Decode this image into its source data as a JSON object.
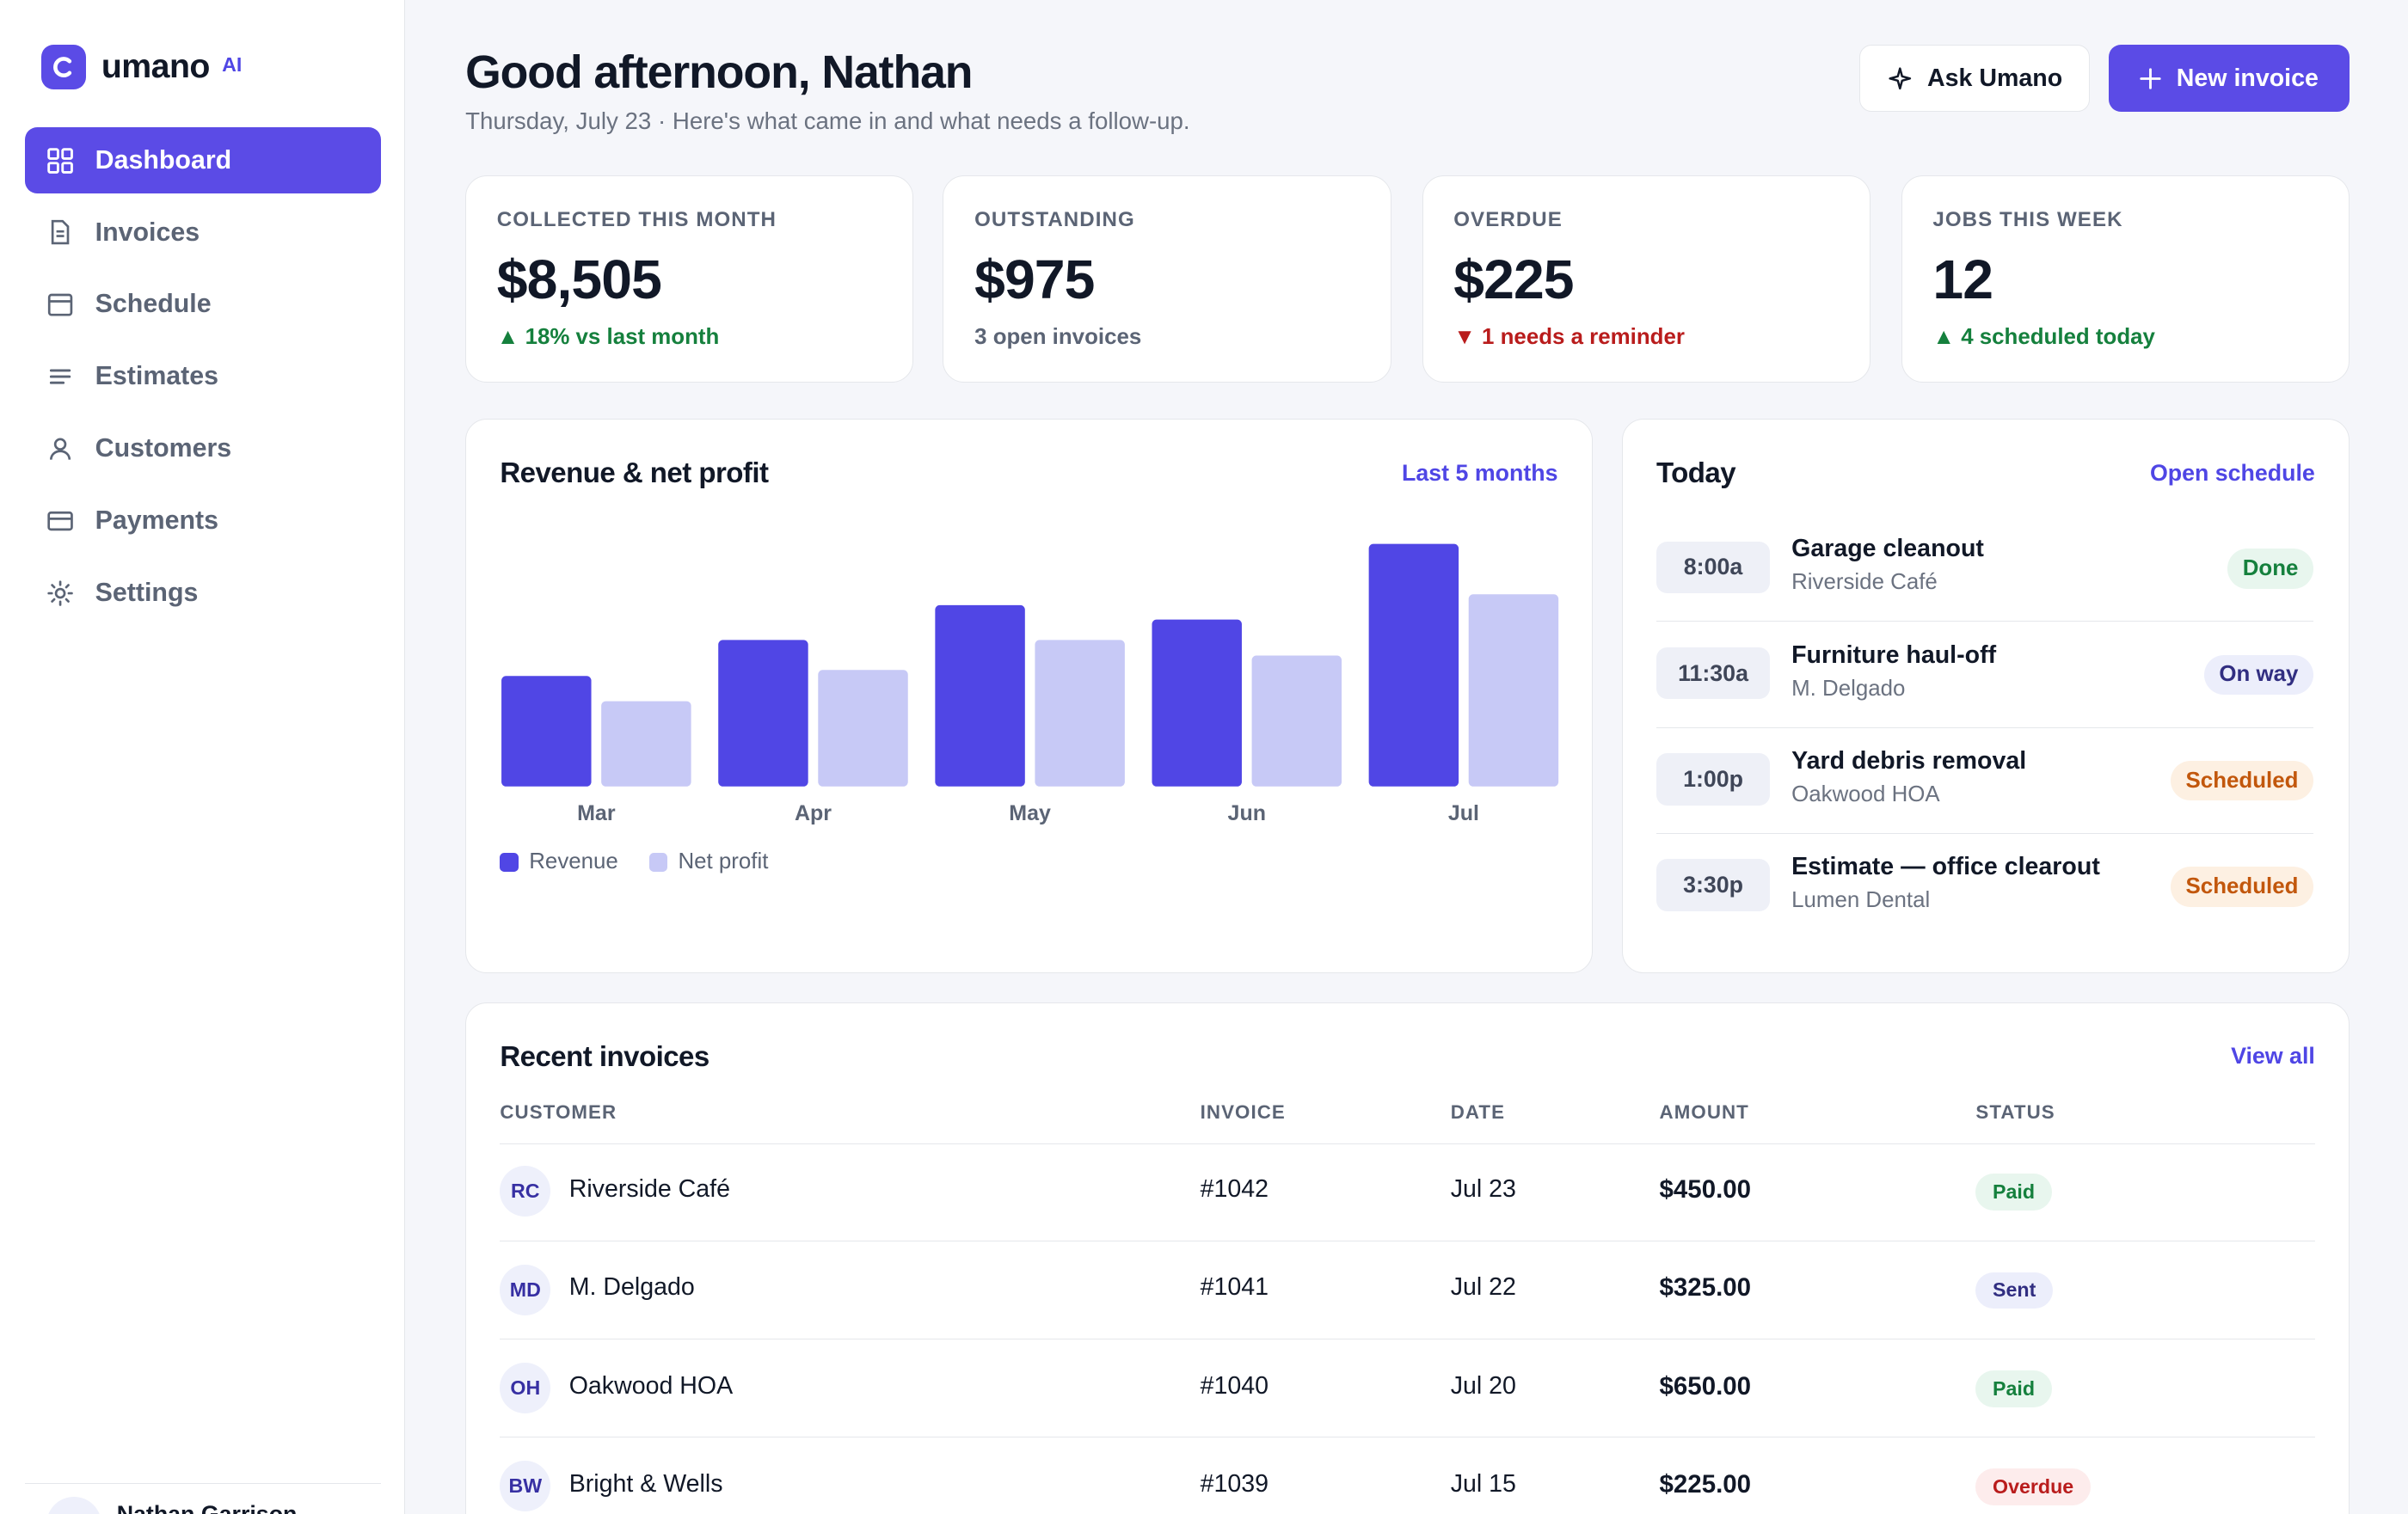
{
  "brand": {
    "name": "umano",
    "tag": "AI"
  },
  "sidebar": {
    "items": [
      {
        "label": "Dashboard",
        "icon": "grid-icon",
        "active": true
      },
      {
        "label": "Invoices",
        "icon": "document-icon",
        "active": false
      },
      {
        "label": "Schedule",
        "icon": "calendar-icon",
        "active": false
      },
      {
        "label": "Estimates",
        "icon": "list-icon",
        "active": false
      },
      {
        "label": "Customers",
        "icon": "user-icon",
        "active": false
      },
      {
        "label": "Payments",
        "icon": "card-icon",
        "active": false
      },
      {
        "label": "Settings",
        "icon": "gear-icon",
        "active": false
      }
    ],
    "user_name": "Nathan Garrison"
  },
  "header": {
    "greeting": "Good afternoon, Nathan",
    "subtitle": "Thursday, July 23 · Here's what came in and what needs a follow-up.",
    "ask_label": "Ask Umano",
    "new_label": "New invoice"
  },
  "stats": [
    {
      "label": "COLLECTED THIS MONTH",
      "value": "$8,505",
      "sub": "▲ 18% vs last month",
      "tone": "green"
    },
    {
      "label": "OUTSTANDING",
      "value": "$975",
      "sub": "3 open invoices",
      "tone": "muted"
    },
    {
      "label": "OVERDUE",
      "value": "$225",
      "sub": "▼ 1 needs a reminder",
      "tone": "red"
    },
    {
      "label": "JOBS THIS WEEK",
      "value": "12",
      "sub": "▲ 4 scheduled today",
      "tone": "green"
    }
  ],
  "revenue_card": {
    "title": "Revenue & net profit",
    "link": "Last 5 months"
  },
  "chart_data": {
    "type": "bar",
    "title": "Revenue & net profit",
    "categories": [
      "Mar",
      "Apr",
      "May",
      "Jun",
      "Jul"
    ],
    "series": [
      {
        "name": "Revenue",
        "color": "#5046e5",
        "values": [
          4600,
          6100,
          7550,
          6950,
          10100
        ]
      },
      {
        "name": "Net profit",
        "color": "#c7c9f6",
        "values": [
          3550,
          4850,
          6100,
          5450,
          8000
        ]
      }
    ],
    "ylim": [
      0,
      10100
    ],
    "grid": false,
    "legend": "bottom-left"
  },
  "today": {
    "title": "Today",
    "link": "Open schedule",
    "jobs": [
      {
        "time": "8:00a",
        "title": "Garage cleanout",
        "client": "Riverside Café",
        "status": "Done",
        "bg": "#e8f6ee",
        "fg": "#15803d"
      },
      {
        "time": "11:30a",
        "title": "Furniture haul-off",
        "client": "M. Delgado",
        "status": "On way",
        "bg": "#eceefb",
        "fg": "#312e81"
      },
      {
        "time": "1:00p",
        "title": "Yard debris removal",
        "client": "Oakwood HOA",
        "status": "Scheduled",
        "bg": "#fdf0e2",
        "fg": "#c2570c"
      },
      {
        "time": "3:30p",
        "title": "Estimate — office clearout",
        "client": "Lumen Dental",
        "status": "Scheduled",
        "bg": "#fdf0e2",
        "fg": "#c2570c"
      }
    ]
  },
  "invoices": {
    "title": "Recent invoices",
    "link": "View all",
    "columns": [
      "CUSTOMER",
      "INVOICE",
      "DATE",
      "AMOUNT",
      "STATUS"
    ],
    "rows": [
      {
        "initials": "RC",
        "customer": "Riverside Café",
        "invoice": "#1042",
        "date": "Jul 23",
        "amount": "$450.00",
        "status": "Paid",
        "bg": "#e8f6ee",
        "fg": "#15803d"
      },
      {
        "initials": "MD",
        "customer": "M. Delgado",
        "invoice": "#1041",
        "date": "Jul 22",
        "amount": "$325.00",
        "status": "Sent",
        "bg": "#eceefb",
        "fg": "#312e81"
      },
      {
        "initials": "OH",
        "customer": "Oakwood HOA",
        "invoice": "#1040",
        "date": "Jul 20",
        "amount": "$650.00",
        "status": "Paid",
        "bg": "#e8f6ee",
        "fg": "#15803d"
      },
      {
        "initials": "BW",
        "customer": "Bright & Wells",
        "invoice": "#1039",
        "date": "Jul 15",
        "amount": "$225.00",
        "status": "Overdue",
        "bg": "#fdecec",
        "fg": "#b91c1c"
      }
    ]
  }
}
